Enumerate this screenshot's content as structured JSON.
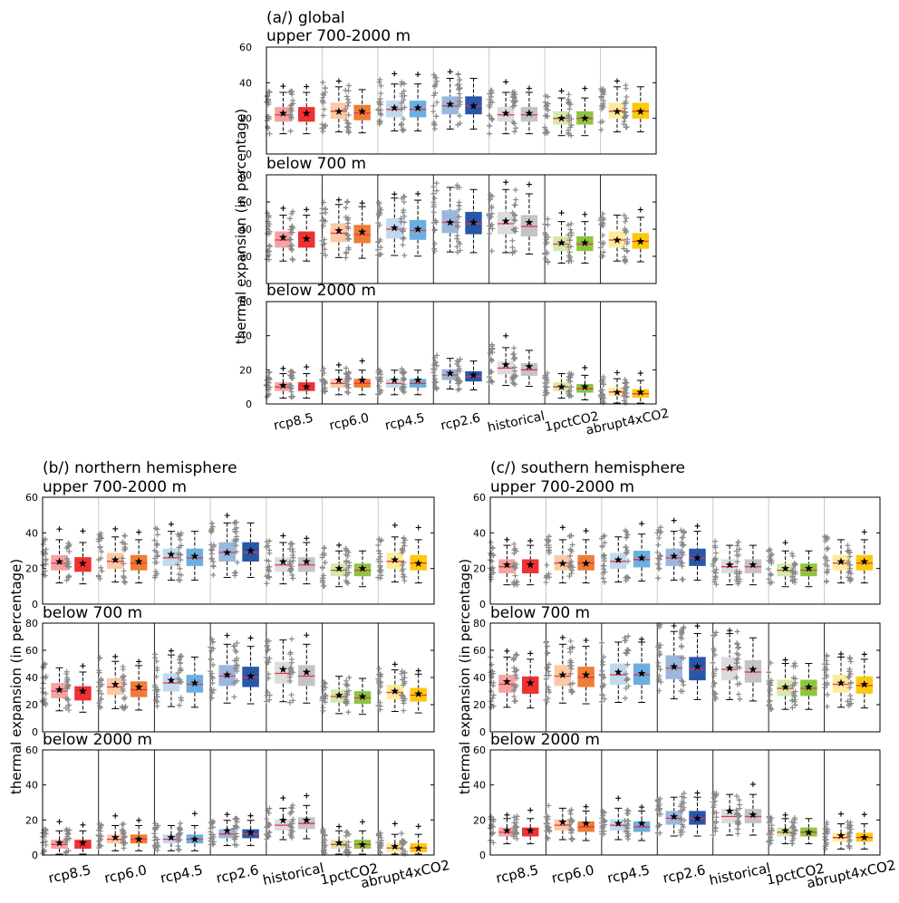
{
  "ylabel": "thermal expansion (in percentage)",
  "categories": [
    "rcp8.5",
    "rcp6.0",
    "rcp4.5",
    "rcp2.6",
    "historical",
    "1pctCO2",
    "abrupt4xCO2"
  ],
  "colors": {
    "light": [
      "#f4a3a3",
      "#fbc9a4",
      "#c0d9ee",
      "#9ab7de",
      "#dcdcdc",
      "#d3eaa8",
      "#fdeb98"
    ],
    "dark": [
      "#ee3131",
      "#f07c35",
      "#6aafe0",
      "#2857a8",
      "#c4c4c4",
      "#8cc63f",
      "#fdc90c"
    ],
    "outlier": "#888888",
    "median": "#e8354a"
  },
  "chart_data": [
    {
      "panel": "a",
      "label": "(a/) global",
      "type": "box",
      "subplots": [
        {
          "title": "upper 700-2000 m",
          "ylim": [
            0,
            60
          ],
          "yticks": [
            0,
            20,
            40,
            60
          ],
          "separator": "light",
          "medians": [
            [
              22,
              22
            ],
            [
              24,
              23
            ],
            [
              25,
              25
            ],
            [
              27,
              27
            ],
            [
              22,
              22
            ],
            [
              20,
              20
            ],
            [
              24,
              24
            ]
          ],
          "means": [
            [
              23,
              23
            ],
            [
              24,
              24
            ],
            [
              26,
              26
            ],
            [
              28,
              27
            ],
            [
              23,
              23
            ],
            [
              20,
              20
            ],
            [
              24,
              24
            ]
          ]
        },
        {
          "title": "below 700 m",
          "ylim": [
            0,
            80
          ],
          "yticks": [
            0,
            20,
            40,
            60,
            80
          ],
          "separator": "dark",
          "medians": [
            [
              32,
              32
            ],
            [
              37,
              36
            ],
            [
              40,
              39
            ],
            [
              45,
              44
            ],
            [
              44,
              42
            ],
            [
              29,
              29
            ],
            [
              32,
              31
            ]
          ],
          "means": [
            [
              34,
              33
            ],
            [
              39,
              38
            ],
            [
              41,
              40
            ],
            [
              45,
              45
            ],
            [
              46,
              45
            ],
            [
              30,
              30
            ],
            [
              32,
              31
            ]
          ]
        },
        {
          "title": "below 2000 m",
          "ylim": [
            0,
            60
          ],
          "yticks": [
            0,
            20,
            40,
            60
          ],
          "separator": "dark",
          "medians": [
            [
              10,
              10
            ],
            [
              12,
              12
            ],
            [
              12,
              12
            ],
            [
              17,
              16
            ],
            [
              21,
              20
            ],
            [
              10,
              9
            ],
            [
              7,
              6
            ]
          ],
          "means": [
            [
              11,
              10
            ],
            [
              14,
              14
            ],
            [
              14,
              14
            ],
            [
              18,
              17
            ],
            [
              23,
              22
            ],
            [
              10,
              10
            ],
            [
              7,
              7
            ]
          ]
        }
      ]
    },
    {
      "panel": "b",
      "label": "(b/) northern hemisphere",
      "type": "box",
      "subplots": [
        {
          "title": "upper 700-2000 m",
          "ylim": [
            0,
            60
          ],
          "yticks": [
            0,
            20,
            40,
            60
          ],
          "separator": "light",
          "medians": [
            [
              23,
              22
            ],
            [
              24,
              23
            ],
            [
              26,
              26
            ],
            [
              29,
              29
            ],
            [
              22,
              22
            ],
            [
              19,
              19
            ],
            [
              24,
              23
            ]
          ],
          "means": [
            [
              24,
              23
            ],
            [
              25,
              24
            ],
            [
              28,
              27
            ],
            [
              29,
              30
            ],
            [
              24,
              24
            ],
            [
              20,
              20
            ],
            [
              25,
              23
            ]
          ]
        },
        {
          "title": "below 700 m",
          "ylim": [
            0,
            80
          ],
          "yticks": [
            0,
            20,
            40,
            60,
            80
          ],
          "separator": "dark",
          "medians": [
            [
              30,
              28
            ],
            [
              33,
              31
            ],
            [
              36,
              35
            ],
            [
              41,
              40
            ],
            [
              43,
              41
            ],
            [
              26,
              25
            ],
            [
              29,
              27
            ]
          ],
          "means": [
            [
              31,
              30
            ],
            [
              35,
              33
            ],
            [
              38,
              36
            ],
            [
              42,
              41
            ],
            [
              46,
              44
            ],
            [
              27,
              26
            ],
            [
              30,
              28
            ]
          ]
        },
        {
          "title": "below 2000 m",
          "ylim": [
            0,
            60
          ],
          "yticks": [
            0,
            20,
            40,
            60
          ],
          "separator": "dark",
          "medians": [
            [
              6,
              6
            ],
            [
              9,
              9
            ],
            [
              9,
              9
            ],
            [
              12,
              12
            ],
            [
              17,
              18
            ],
            [
              6,
              6
            ],
            [
              4,
              4
            ]
          ],
          "means": [
            [
              7,
              7
            ],
            [
              10,
              9
            ],
            [
              10,
              9
            ],
            [
              14,
              13
            ],
            [
              20,
              20
            ],
            [
              7,
              6
            ],
            [
              5,
              4
            ]
          ]
        }
      ]
    },
    {
      "panel": "c",
      "label": "(c/) southern hemisphere",
      "type": "box",
      "subplots": [
        {
          "title": "upper 700-2000 m",
          "ylim": [
            0,
            60
          ],
          "yticks": [
            0,
            20,
            40,
            60
          ],
          "separator": "light",
          "medians": [
            [
              21,
              21
            ],
            [
              23,
              23
            ],
            [
              24,
              25
            ],
            [
              26,
              26
            ],
            [
              21,
              21
            ],
            [
              19,
              19
            ],
            [
              23,
              23
            ]
          ],
          "means": [
            [
              22,
              22
            ],
            [
              23,
              23
            ],
            [
              25,
              26
            ],
            [
              27,
              26
            ],
            [
              22,
              22
            ],
            [
              20,
              20
            ],
            [
              24,
              24
            ]
          ]
        },
        {
          "title": "below 700 m",
          "ylim": [
            0,
            80
          ],
          "yticks": [
            0,
            20,
            40,
            60,
            80
          ],
          "separator": "dark",
          "medians": [
            [
              35,
              34
            ],
            [
              41,
              40
            ],
            [
              42,
              42
            ],
            [
              47,
              46
            ],
            [
              46,
              44
            ],
            [
              32,
              32
            ],
            [
              35,
              34
            ]
          ],
          "means": [
            [
              37,
              36
            ],
            [
              42,
              42
            ],
            [
              44,
              43
            ],
            [
              48,
              48
            ],
            [
              47,
              46
            ],
            [
              33,
              33
            ],
            [
              36,
              35
            ]
          ]
        },
        {
          "title": "below 2000 m",
          "ylim": [
            0,
            60
          ],
          "yticks": [
            0,
            20,
            40,
            60
          ],
          "separator": "dark",
          "medians": [
            [
              13,
              13
            ],
            [
              17,
              16
            ],
            [
              17,
              16
            ],
            [
              21,
              21
            ],
            [
              22,
              22
            ],
            [
              13,
              13
            ],
            [
              10,
              10
            ]
          ],
          "means": [
            [
              14,
              14
            ],
            [
              19,
              18
            ],
            [
              18,
              18
            ],
            [
              22,
              21
            ],
            [
              25,
              23
            ],
            [
              14,
              13
            ],
            [
              11,
              10
            ]
          ]
        }
      ]
    }
  ]
}
